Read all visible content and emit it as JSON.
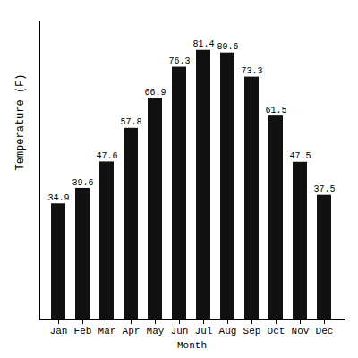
{
  "chart_data": {
    "type": "bar",
    "categories": [
      "Jan",
      "Feb",
      "Mar",
      "Apr",
      "May",
      "Jun",
      "Jul",
      "Aug",
      "Sep",
      "Oct",
      "Nov",
      "Dec"
    ],
    "values": [
      34.9,
      39.6,
      47.6,
      57.8,
      66.9,
      76.3,
      81.4,
      80.6,
      73.3,
      61.5,
      47.5,
      37.5
    ],
    "color": "#111111",
    "xlabel": "Month",
    "ylabel": "Temperature (F)",
    "ylim": [
      0,
      90
    ],
    "grid": false,
    "data_labels": true,
    "tick_labels": "x"
  }
}
